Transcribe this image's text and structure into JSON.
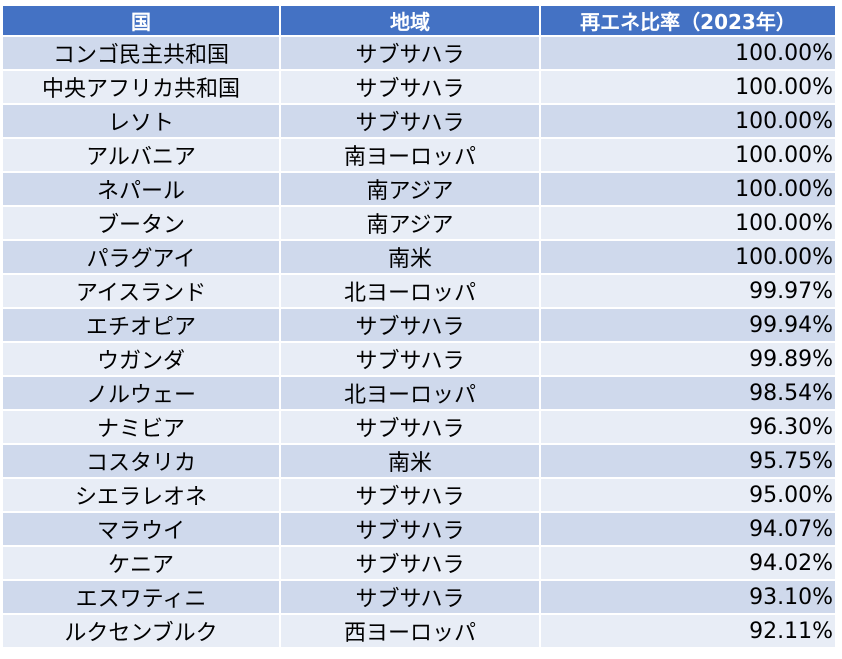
{
  "header": {
    "country": "国",
    "region": "地域",
    "ratio": "再エネ比率（2023年）"
  },
  "rows": [
    {
      "country": "コンゴ民主共和国",
      "region": "サブサハラ",
      "ratio": "100.00%"
    },
    {
      "country": "中央アフリカ共和国",
      "region": "サブサハラ",
      "ratio": "100.00%"
    },
    {
      "country": "レソト",
      "region": "サブサハラ",
      "ratio": "100.00%"
    },
    {
      "country": "アルバニア",
      "region": "南ヨーロッパ",
      "ratio": "100.00%"
    },
    {
      "country": "ネパール",
      "region": "南アジア",
      "ratio": "100.00%"
    },
    {
      "country": "ブータン",
      "region": "南アジア",
      "ratio": "100.00%"
    },
    {
      "country": "パラグアイ",
      "region": "南米",
      "ratio": "100.00%"
    },
    {
      "country": "アイスランド",
      "region": "北ヨーロッパ",
      "ratio": "99.97%"
    },
    {
      "country": "エチオピア",
      "region": "サブサハラ",
      "ratio": "99.94%"
    },
    {
      "country": "ウガンダ",
      "region": "サブサハラ",
      "ratio": "99.89%"
    },
    {
      "country": "ノルウェー",
      "region": "北ヨーロッパ",
      "ratio": "98.54%"
    },
    {
      "country": "ナミビア",
      "region": "サブサハラ",
      "ratio": "96.30%"
    },
    {
      "country": "コスタリカ",
      "region": "南米",
      "ratio": "95.75%"
    },
    {
      "country": "シエラレオネ",
      "region": "サブサハラ",
      "ratio": "95.00%"
    },
    {
      "country": "マラウイ",
      "region": "サブサハラ",
      "ratio": "94.07%"
    },
    {
      "country": "ケニア",
      "region": "サブサハラ",
      "ratio": "94.02%"
    },
    {
      "country": "エスワティニ",
      "region": "サブサハラ",
      "ratio": "93.10%"
    },
    {
      "country": "ルクセンブルク",
      "region": "西ヨーロッパ",
      "ratio": "92.11%"
    }
  ],
  "colors": {
    "header_bg": "#4472c4",
    "row_odd_bg": "#cfd9ec",
    "row_even_bg": "#e8edf6"
  }
}
